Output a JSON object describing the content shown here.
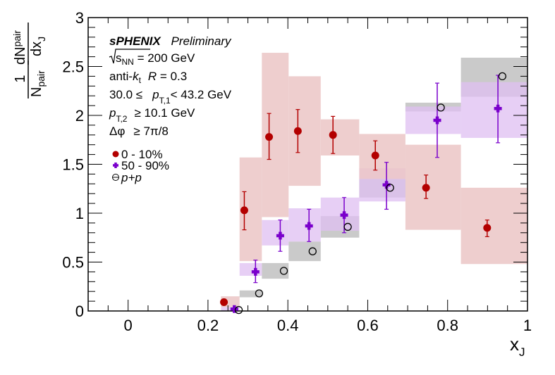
{
  "chart_data": {
    "type": "scatter",
    "title": "",
    "xlabel": "x",
    "xlabel_sub": "J",
    "ylabel": {
      "numerator": "dN",
      "numerator_sub": "pair",
      "prefactor_num": "1",
      "prefactor_den": "N",
      "prefactor_den_sub": "pair",
      "denominator": "dx",
      "denominator_sub": "J"
    },
    "xlim": [
      -0.1,
      1.0
    ],
    "ylim": [
      0,
      3
    ],
    "x_ticks": [
      0,
      0.2,
      0.4,
      0.6,
      0.8,
      1
    ],
    "x_tick_labels": [
      "0",
      "0.2",
      "0.4",
      "0.6",
      "0.8",
      "1"
    ],
    "x_minor_step": 0.05,
    "y_ticks": [
      0,
      0.5,
      1,
      1.5,
      2,
      2.5,
      3
    ],
    "y_tick_labels": [
      "0",
      "0.5",
      "1",
      "1.5",
      "2",
      "2.5",
      "3"
    ],
    "y_minor_step": 0.1,
    "grid": false,
    "bin_edges": [
      0.2326,
      0.2791,
      0.3349,
      0.4019,
      0.4823,
      0.5787,
      0.6944,
      0.8333,
      1.0
    ],
    "series": [
      {
        "name": "0 - 10%",
        "marker": "filled-circle",
        "color": "#b30000",
        "syst_color": "#ebc6c6",
        "x": [
          0.24,
          0.291,
          0.353,
          0.425,
          0.513,
          0.619,
          0.746,
          0.899
        ],
        "y": [
          0.09,
          1.03,
          1.78,
          1.84,
          1.8,
          1.59,
          1.26,
          0.85
        ],
        "stat_low": [
          0.06,
          0.83,
          1.55,
          1.62,
          1.61,
          1.44,
          1.15,
          0.76
        ],
        "stat_high": [
          0.12,
          1.22,
          2.02,
          2.06,
          1.99,
          1.74,
          1.39,
          0.93
        ],
        "syst_low": [
          0.04,
          0.51,
          0.96,
          1.28,
          1.59,
          1.35,
          0.83,
          0.48
        ],
        "syst_high": [
          0.15,
          1.57,
          2.64,
          2.4,
          1.96,
          1.81,
          1.7,
          1.26
        ]
      },
      {
        "name": "50 - 90%",
        "marker": "filled-cross",
        "color": "#7a00cc",
        "syst_color": "#dfbff2",
        "x": [
          0.266,
          0.319,
          0.381,
          0.453,
          0.541,
          0.647,
          0.774,
          0.926
        ],
        "y": [
          0.02,
          0.4,
          0.77,
          0.87,
          0.98,
          1.29,
          1.95,
          2.07
        ],
        "stat_low": [
          0.01,
          0.29,
          0.61,
          0.71,
          0.8,
          1.04,
          1.57,
          1.72
        ],
        "stat_high": [
          0.03,
          0.52,
          0.93,
          1.04,
          1.16,
          1.52,
          2.33,
          2.41
        ],
        "syst_low": [
          0.0,
          0.36,
          0.67,
          0.71,
          0.82,
          1.12,
          1.81,
          1.77
        ],
        "syst_high": [
          0.04,
          0.49,
          0.93,
          1.05,
          1.16,
          1.46,
          2.09,
          2.34
        ]
      },
      {
        "name": "p+p",
        "marker": "open-circle",
        "color": "#000000",
        "syst_color": "#bdbdbd",
        "x": [
          0.277,
          0.328,
          0.39,
          0.462,
          0.55,
          0.656,
          0.783,
          0.937
        ],
        "y": [
          0.01,
          0.18,
          0.41,
          0.61,
          0.86,
          1.26,
          2.08,
          2.4
        ],
        "syst_low": [
          0.0,
          0.14,
          0.33,
          0.51,
          0.75,
          1.16,
          2.04,
          2.19
        ],
        "syst_high": [
          0.01,
          0.21,
          0.49,
          0.71,
          0.97,
          1.35,
          2.13,
          2.59
        ]
      }
    ],
    "legend": {
      "placement": "top-left",
      "entries": [
        "0 - 10%",
        "50 - 90%",
        "p+p"
      ]
    },
    "annotations": {
      "experiment": "sPHENIX",
      "status": "Preliminary",
      "energy_sqrt": "s",
      "energy_sub": "NN",
      "energy_value": " = 200 GeV",
      "algo_prefix": "anti-",
      "algo_k": "k",
      "algo_k_sub": "t",
      "algo_R": "R",
      "algo_R_value": " = 0.3",
      "pt1_low": "30.0 ≤",
      "pt1_p": "p",
      "pt1_sub": "T,1",
      "pt1_high": "< 43.2 GeV",
      "pt2_p": "p",
      "pt2_sub": "T,2",
      "pt2_cut": "≥ 10.1 GeV",
      "dphi_sym": "Δφ",
      "dphi_cut": "≥ 7π/8"
    }
  }
}
